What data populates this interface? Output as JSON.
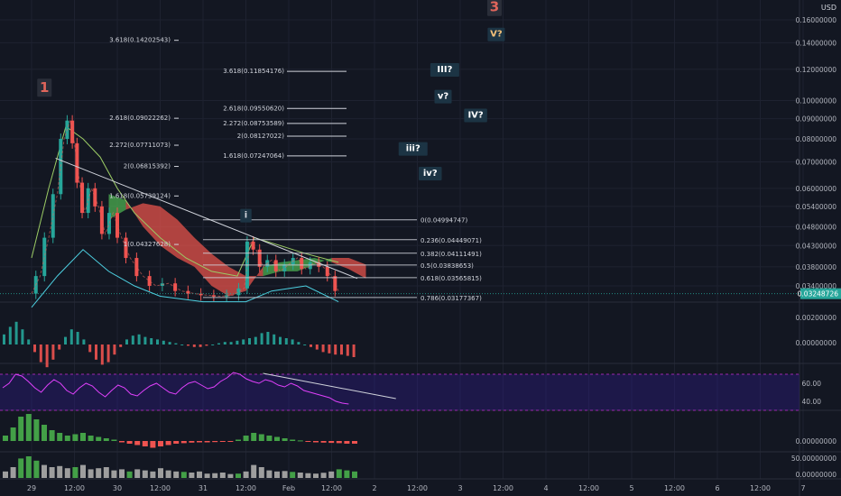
{
  "chart_data": {
    "type": "line",
    "title": "",
    "currency": "USD",
    "price_axis": {
      "scale": "log",
      "range": [
        0.0305,
        0.17
      ],
      "ticks": [
        "0.16000000",
        "0.14000000",
        "0.12000000",
        "0.10000000",
        "0.09000000",
        "0.08000000",
        "0.07000000",
        "0.06000000",
        "0.05400000",
        "0.04800000",
        "0.04300000",
        "0.03800000",
        "0.03400000"
      ],
      "last_price": "0.03248726"
    },
    "time_axis": {
      "ticks": [
        "29",
        "12:00",
        "30",
        "12:00",
        "31",
        "12:00",
        "Feb",
        "12:00",
        "2",
        "12:00",
        "3",
        "12:00",
        "4",
        "12:00",
        "5",
        "12:00",
        "6",
        "12:00",
        "7"
      ]
    },
    "price_series": [
      {
        "t": 0.0,
        "v": 0.0325
      },
      {
        "t": 0.1,
        "v": 0.036
      },
      {
        "t": 0.2,
        "v": 0.045
      },
      {
        "t": 0.3,
        "v": 0.058
      },
      {
        "t": 0.38,
        "v": 0.08
      },
      {
        "t": 0.45,
        "v": 0.089
      },
      {
        "t": 0.5,
        "v": 0.078
      },
      {
        "t": 0.56,
        "v": 0.062
      },
      {
        "t": 0.62,
        "v": 0.052
      },
      {
        "t": 0.7,
        "v": 0.06
      },
      {
        "t": 0.78,
        "v": 0.054
      },
      {
        "t": 0.86,
        "v": 0.046
      },
      {
        "t": 0.95,
        "v": 0.052
      },
      {
        "t": 1.05,
        "v": 0.045
      },
      {
        "t": 1.15,
        "v": 0.04
      },
      {
        "t": 1.3,
        "v": 0.036
      },
      {
        "t": 1.45,
        "v": 0.034
      },
      {
        "t": 1.6,
        "v": 0.0345
      },
      {
        "t": 1.75,
        "v": 0.033
      },
      {
        "t": 1.9,
        "v": 0.0325
      },
      {
        "t": 2.05,
        "v": 0.0322
      },
      {
        "t": 2.2,
        "v": 0.032
      },
      {
        "t": 2.35,
        "v": 0.0322
      },
      {
        "t": 2.48,
        "v": 0.0335
      },
      {
        "t": 2.55,
        "v": 0.044
      },
      {
        "t": 2.62,
        "v": 0.042
      },
      {
        "t": 2.7,
        "v": 0.038
      },
      {
        "t": 2.8,
        "v": 0.0395
      },
      {
        "t": 2.9,
        "v": 0.037
      },
      {
        "t": 3.0,
        "v": 0.0385
      },
      {
        "t": 3.1,
        "v": 0.04
      },
      {
        "t": 3.2,
        "v": 0.0375
      },
      {
        "t": 3.3,
        "v": 0.039
      },
      {
        "t": 3.4,
        "v": 0.038
      },
      {
        "t": 3.5,
        "v": 0.036
      },
      {
        "t": 3.58,
        "v": 0.033
      }
    ],
    "upper_band": [
      {
        "t": 0.0,
        "v": 0.04
      },
      {
        "t": 0.2,
        "v": 0.06
      },
      {
        "t": 0.4,
        "v": 0.086
      },
      {
        "t": 0.6,
        "v": 0.08
      },
      {
        "t": 0.8,
        "v": 0.072
      },
      {
        "t": 1.0,
        "v": 0.06
      },
      {
        "t": 1.2,
        "v": 0.052
      },
      {
        "t": 1.5,
        "v": 0.045
      },
      {
        "t": 1.8,
        "v": 0.04
      },
      {
        "t": 2.1,
        "v": 0.037
      },
      {
        "t": 2.4,
        "v": 0.036
      },
      {
        "t": 2.6,
        "v": 0.045
      },
      {
        "t": 2.9,
        "v": 0.043
      },
      {
        "t": 3.2,
        "v": 0.041
      },
      {
        "t": 3.58,
        "v": 0.039
      }
    ],
    "lower_band": [
      {
        "t": 0.0,
        "v": 0.03
      },
      {
        "t": 0.3,
        "v": 0.036
      },
      {
        "t": 0.6,
        "v": 0.042
      },
      {
        "t": 0.9,
        "v": 0.037
      },
      {
        "t": 1.2,
        "v": 0.034
      },
      {
        "t": 1.5,
        "v": 0.032
      },
      {
        "t": 2.0,
        "v": 0.031
      },
      {
        "t": 2.5,
        "v": 0.031
      },
      {
        "t": 2.8,
        "v": 0.033
      },
      {
        "t": 3.2,
        "v": 0.034
      },
      {
        "t": 3.58,
        "v": 0.031
      }
    ],
    "ichimoku_cloud": [
      {
        "t": 0.9,
        "a": 0.058,
        "b": 0.05
      },
      {
        "t": 1.1,
        "a": 0.056,
        "b": 0.053
      },
      {
        "t": 1.3,
        "a": 0.048,
        "b": 0.055
      },
      {
        "t": 1.5,
        "a": 0.043,
        "b": 0.054
      },
      {
        "t": 1.7,
        "a": 0.04,
        "b": 0.05
      },
      {
        "t": 1.9,
        "a": 0.038,
        "b": 0.045
      },
      {
        "t": 2.1,
        "a": 0.034,
        "b": 0.041
      },
      {
        "t": 2.3,
        "a": 0.032,
        "b": 0.038
      },
      {
        "t": 2.5,
        "a": 0.033,
        "b": 0.036
      },
      {
        "t": 2.7,
        "a": 0.038,
        "b": 0.036
      },
      {
        "t": 2.9,
        "a": 0.039,
        "b": 0.037
      },
      {
        "t": 3.1,
        "a": 0.0395,
        "b": 0.037
      },
      {
        "t": 3.3,
        "a": 0.04,
        "b": 0.0385
      },
      {
        "t": 3.5,
        "a": 0.039,
        "b": 0.04
      },
      {
        "t": 3.7,
        "a": 0.0375,
        "b": 0.04
      },
      {
        "t": 3.9,
        "a": 0.0355,
        "b": 0.0385
      }
    ],
    "trendline": [
      {
        "t": 0.28,
        "v": 0.0715
      },
      {
        "t": 3.8,
        "v": 0.0355
      }
    ],
    "fib_retracement": [
      {
        "label": "0(0.04994747)",
        "value": 0.04994747
      },
      {
        "label": "0.236(0.04449071)",
        "value": 0.04449071
      },
      {
        "label": "0.382(0.04111491)",
        "value": 0.04111491
      },
      {
        "label": "0.5(0.03838653)",
        "value": 0.03838653
      },
      {
        "label": "0.618(0.03565815)",
        "value": 0.03565815
      },
      {
        "label": "0.786(0.03177367)",
        "value": 0.03177367
      }
    ],
    "fib_extension_1": [
      {
        "label": "3.618(0.14202543)",
        "value": 0.14202543
      },
      {
        "label": "2.618(0.09022262)",
        "value": 0.09022262
      },
      {
        "label": "2.272(0.07711073)",
        "value": 0.07711073
      },
      {
        "label": "2(0.06815392)",
        "value": 0.06815392
      },
      {
        "label": "1.618(0.05739124)",
        "value": 0.05739124
      },
      {
        "label": "1(0.04327628)",
        "value": 0.04327628
      }
    ],
    "fib_extension_2": [
      {
        "label": "3.618(0.11854176)",
        "value": 0.11854176
      },
      {
        "label": "2.618(0.09550620)",
        "value": 0.0955062
      },
      {
        "label": "2.272(0.08753589)",
        "value": 0.08753589
      },
      {
        "label": "2(0.08127022)",
        "value": 0.08127022
      },
      {
        "label": "1.618(0.07247064)",
        "value": 0.07247064
      }
    ],
    "wave_labels": [
      {
        "text": "1",
        "t": 0.15,
        "v": 0.105,
        "color": "#e0655b",
        "box": true
      },
      {
        "text": "3",
        "t": 5.4,
        "v": 0.168,
        "color": "#e0655b",
        "box": true
      },
      {
        "text": "i",
        "t": 2.5,
        "v": 0.0505,
        "color": "#d1d4dc",
        "box": true
      },
      {
        "text": "V?",
        "t": 5.42,
        "v": 0.145,
        "color": "#f5c27a",
        "box": true
      },
      {
        "text": "III?",
        "t": 4.82,
        "v": 0.118,
        "color": "#ffffff",
        "box": true
      },
      {
        "text": "v?",
        "t": 4.8,
        "v": 0.101,
        "color": "#ffffff",
        "box": true
      },
      {
        "text": "IV?",
        "t": 5.18,
        "v": 0.0905,
        "color": "#ffffff",
        "box": true
      },
      {
        "text": "iii?",
        "t": 4.45,
        "v": 0.0745,
        "color": "#ffffff",
        "box": true
      },
      {
        "text": "iv?",
        "t": 4.65,
        "v": 0.0645,
        "color": "#ffffff",
        "box": true
      }
    ],
    "macd_histogram": [
      0.4,
      0.7,
      0.9,
      0.6,
      0.2,
      -0.3,
      -0.7,
      -0.9,
      -0.6,
      -0.2,
      0.3,
      0.6,
      0.5,
      0.2,
      -0.3,
      -0.6,
      -0.8,
      -0.7,
      -0.4,
      -0.1,
      0.2,
      0.35,
      0.4,
      0.3,
      0.25,
      0.2,
      0.15,
      0.1,
      0.05,
      0.0,
      -0.05,
      -0.1,
      -0.1,
      -0.05,
      0.0,
      0.05,
      0.1,
      0.1,
      0.15,
      0.2,
      0.25,
      0.3,
      0.45,
      0.5,
      0.4,
      0.3,
      0.25,
      0.2,
      0.1,
      0.0,
      -0.1,
      -0.2,
      -0.3,
      -0.35,
      -0.4,
      -0.4,
      -0.45,
      -0.5
    ],
    "macd_axis_ticks": [
      "0.00200000",
      "0.00000000"
    ],
    "rsi_series": [
      55,
      60,
      70,
      68,
      62,
      55,
      50,
      58,
      64,
      60,
      52,
      48,
      55,
      60,
      57,
      50,
      45,
      52,
      58,
      55,
      48,
      46,
      52,
      57,
      60,
      55,
      50,
      48,
      55,
      60,
      62,
      58,
      54,
      56,
      62,
      66,
      72,
      70,
      65,
      62,
      60,
      64,
      62,
      58,
      56,
      60,
      57,
      52,
      50,
      48,
      46,
      44,
      40,
      38,
      37
    ],
    "rsi_axis_ticks": [
      "60.00",
      "40.00"
    ],
    "rsi_trendline": [
      {
        "t": 2.7,
        "v": 71
      },
      {
        "t": 4.25,
        "v": 43
      }
    ],
    "oscillator_histogram": [
      0.2,
      0.5,
      0.9,
      1.0,
      0.8,
      0.6,
      0.4,
      0.3,
      0.2,
      0.25,
      0.3,
      0.2,
      0.15,
      0.1,
      0.05,
      -0.05,
      -0.1,
      -0.15,
      -0.2,
      -0.25,
      -0.2,
      -0.15,
      -0.1,
      -0.08,
      -0.06,
      -0.05,
      -0.05,
      -0.04,
      -0.03,
      -0.02,
      0.05,
      0.2,
      0.3,
      0.25,
      0.2,
      0.15,
      0.1,
      0.05,
      0.02,
      -0.02,
      -0.05,
      -0.06,
      -0.07,
      -0.08,
      -0.1,
      -0.1
    ],
    "oscillator_axis_ticks": [
      "0.00000000"
    ],
    "volume_histogram": [
      0.3,
      0.5,
      0.9,
      1.0,
      0.8,
      0.6,
      0.5,
      0.55,
      0.45,
      0.5,
      0.6,
      0.4,
      0.45,
      0.5,
      0.35,
      0.4,
      0.3,
      0.4,
      0.35,
      0.3,
      0.45,
      0.35,
      0.3,
      0.28,
      0.25,
      0.3,
      0.2,
      0.22,
      0.25,
      0.18,
      0.2,
      0.3,
      0.6,
      0.5,
      0.35,
      0.3,
      0.32,
      0.28,
      0.25,
      0.22,
      0.2,
      0.24,
      0.3,
      0.4,
      0.35,
      0.3
    ],
    "volume_axis_ticks": [
      "50.00000000",
      "0.00000000"
    ],
    "colors": {
      "up": "#26a69a",
      "down": "#ef5350",
      "cloud_bull": "#4caf50",
      "cloud_bear": "#e5534b",
      "upper_band": "#9ccc65",
      "basis": "#4dd0e1",
      "rsi": "#e040fb",
      "rsi_band": "#311b92",
      "volume_up": "#43a047",
      "volume_down": "#9e9e9e",
      "last_price_badge": "#26a69a"
    }
  }
}
